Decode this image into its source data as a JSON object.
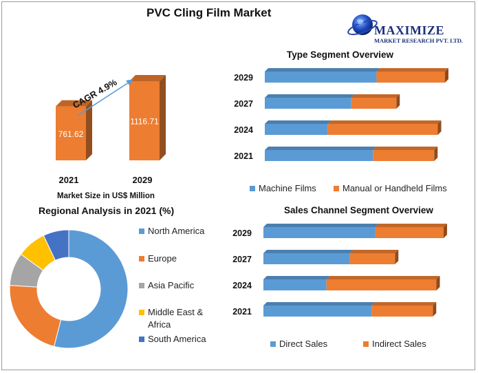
{
  "title": "PVC Cling Film Market",
  "logo": {
    "name": "MAXIMIZE",
    "sub": "MARKET RESEARCH PVT. LTD."
  },
  "colors": {
    "blue": "#5b9bd5",
    "orange": "#ed7d31",
    "gray": "#a5a5a5",
    "yellow": "#ffc000",
    "darkblue": "#4472c4"
  },
  "chart_data": [
    {
      "type": "bar",
      "title": "",
      "categories": [
        "2021",
        "2029"
      ],
      "values": [
        761.62,
        1116.71
      ],
      "value_labels": [
        "761.62",
        "1116.71"
      ],
      "xlabel": "Market Size in US$ Million",
      "annotation": "CAGR 4.9%"
    },
    {
      "type": "bar",
      "orientation": "horizontal",
      "stacked": true,
      "title": "Type Segment Overview",
      "categories": [
        "2029",
        "2027",
        "2024",
        "2021"
      ],
      "series": [
        {
          "name": "Machine Films",
          "values": [
            62,
            48,
            35,
            60
          ]
        },
        {
          "name": "Manual or Handheld Films",
          "values": [
            38,
            25,
            61,
            34
          ]
        }
      ],
      "legend": "bottom"
    },
    {
      "type": "pie",
      "donut": true,
      "title": "Regional Analysis in 2021 (%)",
      "labels": [
        "North America",
        "Europe",
        "Asia Pacific",
        "Middle East & Africa",
        "South America"
      ],
      "legend_lines": [
        [
          "North America"
        ],
        [
          "Europe"
        ],
        [
          "Asia Pacific"
        ],
        [
          "Middle East &",
          "Africa"
        ],
        [
          "South America"
        ]
      ],
      "values": [
        54,
        22,
        9,
        8,
        7
      ],
      "legend": "right"
    },
    {
      "type": "bar",
      "orientation": "horizontal",
      "stacked": true,
      "title": "Sales Channel Segment Overview",
      "categories": [
        "2029",
        "2027",
        "2024",
        "2021"
      ],
      "series": [
        {
          "name": "Direct Sales",
          "values": [
            62,
            48,
            35,
            60
          ]
        },
        {
          "name": "Indirect Sales",
          "values": [
            38,
            25,
            61,
            34
          ]
        }
      ],
      "legend": "bottom"
    }
  ]
}
